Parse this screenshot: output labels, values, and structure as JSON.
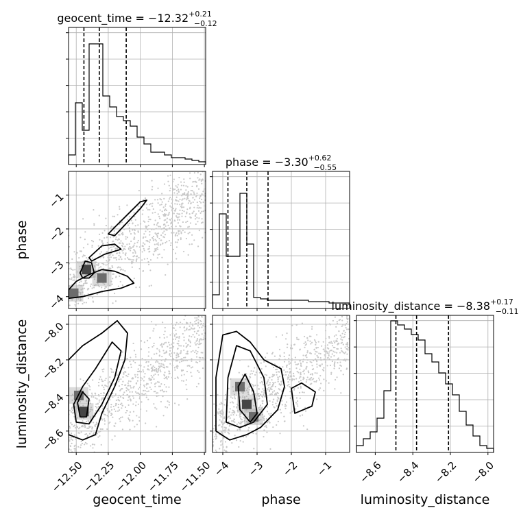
{
  "chart_data": {
    "type": "corner",
    "parameters": [
      {
        "name": "geocent_time",
        "axis_label": "geocent_time",
        "title": {
          "prefix": "geocent_time = ",
          "value": "−12.32",
          "plus": "+0.21",
          "minus": "−0.12"
        },
        "range": [
          -12.56,
          -11.49
        ],
        "ticks": [
          -12.5,
          -12.25,
          -12.0,
          -11.75,
          -11.5
        ],
        "tick_labels": [
          "−12.50",
          "−12.25",
          "−12.00",
          "−11.75",
          "−11.50"
        ],
        "quantiles": [
          -12.44,
          -12.32,
          -12.11
        ],
        "histogram": {
          "edges_start": -12.56,
          "bin_width": 0.0535,
          "counts": [
            0.07,
            0.45,
            0.25,
            0.88,
            0.88,
            0.5,
            0.42,
            0.35,
            0.32,
            0.28,
            0.2,
            0.15,
            0.09,
            0.09,
            0.07,
            0.05,
            0.05,
            0.04,
            0.03,
            0.02
          ],
          "ylim": [
            0,
            1
          ]
        }
      },
      {
        "name": "phase",
        "axis_label": "phase",
        "title": {
          "prefix": "phase = ",
          "value": "−3.30",
          "plus": "+0.62",
          "minus": "−0.55"
        },
        "range": [
          -4.3,
          -0.3
        ],
        "ticks": [
          -4,
          -3,
          -2,
          -1
        ],
        "tick_labels": [
          "−4",
          "−3",
          "−2",
          "−1"
        ],
        "quantiles": [
          -3.85,
          -3.3,
          -2.68
        ],
        "histogram": {
          "edges_start": -4.3,
          "bin_width": 0.2,
          "counts": [
            0.1,
            0.69,
            0.38,
            0.38,
            0.84,
            0.47,
            0.08,
            0.07,
            0.06,
            0.06,
            0.06,
            0.06,
            0.06,
            0.06,
            0.05,
            0.05,
            0.05,
            0.04,
            0.04,
            0.04
          ],
          "ylim": [
            0,
            1
          ]
        }
      },
      {
        "name": "luminosity_distance",
        "axis_label": "luminosity_distance",
        "title": {
          "prefix": "luminosity_distance = ",
          "value": "−8.38",
          "plus": "+0.17",
          "minus": "−0.11"
        },
        "range": [
          -8.7,
          -7.97
        ],
        "ticks": [
          -8.6,
          -8.4,
          -8.2,
          -8.0
        ],
        "tick_labels": [
          "−8.6",
          "−8.4",
          "−8.2",
          "−8.0"
        ],
        "quantiles": [
          -8.49,
          -8.38,
          -8.21
        ],
        "histogram": {
          "edges_start": -8.7,
          "bin_width": 0.0365,
          "counts": [
            0.05,
            0.1,
            0.15,
            0.25,
            0.45,
            0.96,
            0.93,
            0.9,
            0.86,
            0.82,
            0.72,
            0.66,
            0.58,
            0.5,
            0.42,
            0.3,
            0.2,
            0.12,
            0.05,
            0.03
          ],
          "ylim": [
            0,
            1
          ]
        }
      }
    ],
    "joint": [
      {
        "x": "geocent_time",
        "y": "phase",
        "density_peaks": [
          [
            -12.42,
            -3.2
          ],
          [
            -12.52,
            -3.9
          ],
          [
            -12.3,
            -3.45
          ]
        ],
        "contours": [
          [
            [
              -12.56,
              -3.8
            ],
            [
              -12.5,
              -3.55
            ],
            [
              -12.4,
              -3.35
            ],
            [
              -12.3,
              -3.2
            ],
            [
              -12.2,
              -3.25
            ],
            [
              -12.1,
              -3.4
            ],
            [
              -12.05,
              -3.6
            ],
            [
              -12.15,
              -3.75
            ],
            [
              -12.3,
              -3.85
            ],
            [
              -12.45,
              -4.0
            ],
            [
              -12.56,
              -4.05
            ]
          ],
          [
            [
              -12.47,
              -3.3
            ],
            [
              -12.43,
              -2.95
            ],
            [
              -12.38,
              -3.0
            ],
            [
              -12.36,
              -3.3
            ],
            [
              -12.4,
              -3.45
            ],
            [
              -12.45,
              -3.45
            ]
          ],
          [
            [
              -12.2,
              -2.2
            ],
            [
              -12.1,
              -1.8
            ],
            [
              -12.0,
              -1.4
            ],
            [
              -11.95,
              -1.15
            ],
            [
              -12.0,
              -1.2
            ],
            [
              -12.08,
              -1.5
            ],
            [
              -12.2,
              -1.95
            ],
            [
              -12.25,
              -2.15
            ]
          ],
          [
            [
              -12.4,
              -2.85
            ],
            [
              -12.3,
              -2.5
            ],
            [
              -12.2,
              -2.45
            ],
            [
              -12.15,
              -2.6
            ],
            [
              -12.28,
              -2.75
            ],
            [
              -12.38,
              -2.95
            ]
          ]
        ],
        "ylim": [
          -4.35,
          -0.3
        ]
      },
      {
        "x": "geocent_time",
        "y": "luminosity_distance",
        "density_peaks": [
          [
            -12.44,
            -8.49
          ],
          [
            -12.48,
            -8.4
          ]
        ],
        "contours": [
          [
            [
              -12.56,
              -8.62
            ],
            [
              -12.45,
              -8.65
            ],
            [
              -12.35,
              -8.62
            ],
            [
              -12.3,
              -8.5
            ],
            [
              -12.2,
              -8.35
            ],
            [
              -12.12,
              -8.2
            ],
            [
              -12.1,
              -8.05
            ],
            [
              -12.18,
              -7.98
            ],
            [
              -12.3,
              -8.05
            ],
            [
              -12.45,
              -8.12
            ],
            [
              -12.56,
              -8.2
            ]
          ],
          [
            [
              -12.5,
              -8.55
            ],
            [
              -12.4,
              -8.56
            ],
            [
              -12.3,
              -8.45
            ],
            [
              -12.2,
              -8.3
            ],
            [
              -12.15,
              -8.15
            ],
            [
              -12.22,
              -8.1
            ],
            [
              -12.35,
              -8.25
            ],
            [
              -12.45,
              -8.35
            ],
            [
              -12.52,
              -8.45
            ]
          ],
          [
            [
              -12.47,
              -8.52
            ],
            [
              -12.42,
              -8.52
            ],
            [
              -12.4,
              -8.42
            ],
            [
              -12.45,
              -8.38
            ],
            [
              -12.49,
              -8.44
            ]
          ]
        ],
        "ylim": [
          -8.72,
          -7.95
        ]
      },
      {
        "x": "phase",
        "y": "luminosity_distance",
        "density_peaks": [
          [
            -3.3,
            -8.45
          ],
          [
            -3.1,
            -8.52
          ],
          [
            -3.5,
            -8.35
          ]
        ],
        "contours": [
          [
            [
              -4.2,
              -8.6
            ],
            [
              -3.8,
              -8.65
            ],
            [
              -3.3,
              -8.62
            ],
            [
              -2.9,
              -8.58
            ],
            [
              -2.4,
              -8.48
            ],
            [
              -2.2,
              -8.35
            ],
            [
              -2.3,
              -8.25
            ],
            [
              -2.8,
              -8.2
            ],
            [
              -3.2,
              -8.1
            ],
            [
              -3.6,
              -8.04
            ],
            [
              -4.0,
              -8.06
            ],
            [
              -4.2,
              -8.3
            ]
          ],
          [
            [
              -3.9,
              -8.55
            ],
            [
              -3.5,
              -8.58
            ],
            [
              -3.1,
              -8.55
            ],
            [
              -2.7,
              -8.45
            ],
            [
              -2.8,
              -8.3
            ],
            [
              -3.2,
              -8.15
            ],
            [
              -3.6,
              -8.12
            ],
            [
              -3.85,
              -8.3
            ]
          ],
          [
            [
              -3.5,
              -8.48
            ],
            [
              -3.2,
              -8.55
            ],
            [
              -3.0,
              -8.5
            ],
            [
              -3.1,
              -8.38
            ],
            [
              -3.35,
              -8.28
            ],
            [
              -3.55,
              -8.35
            ]
          ],
          [
            [
              -1.9,
              -8.5
            ],
            [
              -1.4,
              -8.46
            ],
            [
              -1.3,
              -8.38
            ],
            [
              -1.7,
              -8.33
            ],
            [
              -2.0,
              -8.36
            ]
          ]
        ],
        "ylim": [
          -8.72,
          -7.95
        ]
      }
    ]
  }
}
